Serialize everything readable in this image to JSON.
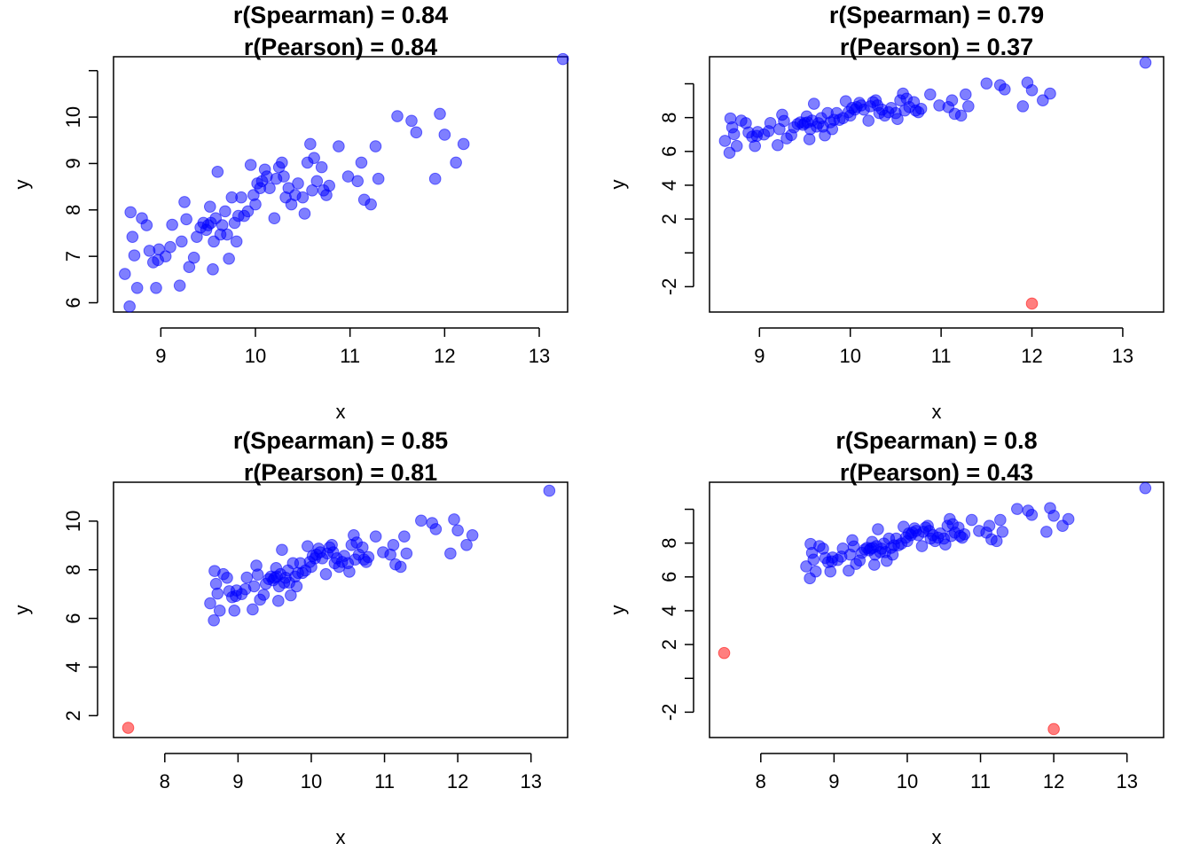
{
  "colors": {
    "point": "#0000FF",
    "outlier": "#FF0000",
    "axis": "#000000",
    "background": "#FFFFFF"
  },
  "chart_data": [
    {
      "type": "scatter",
      "title_line1": "r(Spearman) = 0.84",
      "title_line2": "r(Pearson) = 0.84",
      "xlabel": "x",
      "ylabel": "y",
      "xlim": [
        8.5,
        13.3
      ],
      "ylim": [
        5.8,
        11.3
      ],
      "xticks": [
        9,
        10,
        11,
        12,
        13
      ],
      "yticks": [
        6,
        7,
        8,
        9,
        10,
        11
      ],
      "ytick_labels": [
        "6",
        "7",
        "8",
        "9",
        "10",
        ""
      ],
      "series": [
        {
          "name": "points",
          "color": "#0000FF",
          "x": [
            8.62,
            8.67,
            8.68,
            8.7,
            8.72,
            8.75,
            8.8,
            8.85,
            8.88,
            8.92,
            8.95,
            8.97,
            8.98,
            9.05,
            9.1,
            9.12,
            9.2,
            9.22,
            9.25,
            9.27,
            9.3,
            9.35,
            9.38,
            9.42,
            9.45,
            9.48,
            9.5,
            9.52,
            9.53,
            9.55,
            9.56,
            9.58,
            9.6,
            9.63,
            9.65,
            9.68,
            9.7,
            9.72,
            9.75,
            9.78,
            9.8,
            9.82,
            9.85,
            9.88,
            9.92,
            9.95,
            9.98,
            10.0,
            10.02,
            10.05,
            10.07,
            10.1,
            10.12,
            10.15,
            10.2,
            10.22,
            10.25,
            10.28,
            10.3,
            10.32,
            10.35,
            10.38,
            10.42,
            10.45,
            10.5,
            10.52,
            10.55,
            10.58,
            10.6,
            10.62,
            10.65,
            10.7,
            10.72,
            10.75,
            10.78,
            10.88,
            10.98,
            11.08,
            11.12,
            11.15,
            11.22,
            11.27,
            11.3,
            11.5,
            11.65,
            11.7,
            11.9,
            11.95,
            12.0,
            12.12,
            12.2,
            13.25
          ],
          "y": [
            6.62,
            5.92,
            7.95,
            7.42,
            7.02,
            6.32,
            7.82,
            7.67,
            7.12,
            6.87,
            6.32,
            6.92,
            7.15,
            7.0,
            7.2,
            7.68,
            6.37,
            7.32,
            8.17,
            7.8,
            6.77,
            6.97,
            7.42,
            7.62,
            7.72,
            7.57,
            7.67,
            8.07,
            7.72,
            6.72,
            7.32,
            7.82,
            8.82,
            7.47,
            7.67,
            7.97,
            7.47,
            6.95,
            8.27,
            7.72,
            7.32,
            7.87,
            8.27,
            7.87,
            7.97,
            8.97,
            8.32,
            8.12,
            8.57,
            8.47,
            8.62,
            8.87,
            8.72,
            8.47,
            7.82,
            8.67,
            8.92,
            9.02,
            8.72,
            8.27,
            8.47,
            8.12,
            8.32,
            8.57,
            8.27,
            7.92,
            9.02,
            9.42,
            8.42,
            9.12,
            8.62,
            8.92,
            8.42,
            8.32,
            8.52,
            9.37,
            8.72,
            8.62,
            9.02,
            8.22,
            8.12,
            9.37,
            8.67,
            10.02,
            9.92,
            9.67,
            8.67,
            10.07,
            9.62,
            9.02,
            9.42,
            11.25
          ]
        }
      ]
    },
    {
      "type": "scatter",
      "title_line1": "r(Spearman) = 0.79",
      "title_line2": "r(Pearson) = 0.37",
      "xlabel": "x",
      "ylabel": "y",
      "xlim": [
        8.45,
        13.45
      ],
      "ylim": [
        -3.5,
        11.6
      ],
      "xticks": [
        9,
        10,
        11,
        12,
        13
      ],
      "yticks": [
        -2,
        0,
        2,
        4,
        6,
        8,
        10
      ],
      "ytick_labels": [
        "-2",
        "",
        "2",
        "4",
        "6",
        "8",
        ""
      ],
      "series": [
        {
          "name": "points",
          "color": "#0000FF",
          "x": [
            8.62,
            8.67,
            8.68,
            8.7,
            8.72,
            8.75,
            8.8,
            8.85,
            8.88,
            8.92,
            8.95,
            8.97,
            8.98,
            9.05,
            9.1,
            9.12,
            9.2,
            9.22,
            9.25,
            9.27,
            9.3,
            9.35,
            9.38,
            9.42,
            9.45,
            9.48,
            9.5,
            9.52,
            9.53,
            9.55,
            9.56,
            9.58,
            9.6,
            9.63,
            9.65,
            9.68,
            9.7,
            9.72,
            9.75,
            9.78,
            9.8,
            9.82,
            9.85,
            9.88,
            9.92,
            9.95,
            9.98,
            10.0,
            10.02,
            10.05,
            10.07,
            10.1,
            10.12,
            10.15,
            10.2,
            10.22,
            10.25,
            10.28,
            10.3,
            10.32,
            10.35,
            10.38,
            10.42,
            10.45,
            10.5,
            10.52,
            10.55,
            10.58,
            10.6,
            10.62,
            10.65,
            10.7,
            10.72,
            10.75,
            10.78,
            10.88,
            10.98,
            11.08,
            11.12,
            11.15,
            11.22,
            11.27,
            11.3,
            11.5,
            11.65,
            11.7,
            11.9,
            11.95,
            12.0,
            12.12,
            12.2,
            13.25
          ],
          "y": [
            6.62,
            5.92,
            7.95,
            7.42,
            7.02,
            6.32,
            7.82,
            7.67,
            7.12,
            6.87,
            6.32,
            6.92,
            7.15,
            7.0,
            7.2,
            7.68,
            6.37,
            7.32,
            8.17,
            7.8,
            6.77,
            6.97,
            7.42,
            7.62,
            7.72,
            7.57,
            7.67,
            8.07,
            7.72,
            6.72,
            7.32,
            7.82,
            8.82,
            7.47,
            7.67,
            7.97,
            7.47,
            6.95,
            8.27,
            7.72,
            7.32,
            7.87,
            8.27,
            7.87,
            7.97,
            8.97,
            8.32,
            8.12,
            8.57,
            8.47,
            8.62,
            8.87,
            8.72,
            8.47,
            7.82,
            8.67,
            8.92,
            9.02,
            8.72,
            8.27,
            8.47,
            8.12,
            8.32,
            8.57,
            8.27,
            7.92,
            9.02,
            9.42,
            8.42,
            9.12,
            8.62,
            8.92,
            8.42,
            8.32,
            8.52,
            9.37,
            8.72,
            8.62,
            9.02,
            8.22,
            8.12,
            9.37,
            8.67,
            10.02,
            9.92,
            9.67,
            8.67,
            10.07,
            9.62,
            9.02,
            9.42,
            11.25
          ]
        },
        {
          "name": "outliers",
          "color": "#FF0000",
          "x": [
            12.0
          ],
          "y": [
            -3.0
          ]
        }
      ]
    },
    {
      "type": "scatter",
      "title_line1": "r(Spearman) = 0.85",
      "title_line2": "r(Pearson) = 0.81",
      "xlabel": "x",
      "ylabel": "y",
      "xlim": [
        7.3,
        13.5
      ],
      "ylim": [
        1.1,
        11.6
      ],
      "xticks": [
        8,
        9,
        10,
        11,
        12,
        13
      ],
      "yticks": [
        2,
        4,
        6,
        8,
        10
      ],
      "ytick_labels": [
        "2",
        "4",
        "6",
        "8",
        "10"
      ],
      "series": [
        {
          "name": "points",
          "color": "#0000FF",
          "x": [
            8.62,
            8.67,
            8.68,
            8.7,
            8.72,
            8.75,
            8.8,
            8.85,
            8.88,
            8.92,
            8.95,
            8.97,
            8.98,
            9.05,
            9.1,
            9.12,
            9.2,
            9.22,
            9.25,
            9.27,
            9.3,
            9.35,
            9.38,
            9.42,
            9.45,
            9.48,
            9.5,
            9.52,
            9.53,
            9.55,
            9.56,
            9.58,
            9.6,
            9.63,
            9.65,
            9.68,
            9.7,
            9.72,
            9.75,
            9.78,
            9.8,
            9.82,
            9.85,
            9.88,
            9.92,
            9.95,
            9.98,
            10.0,
            10.02,
            10.05,
            10.07,
            10.1,
            10.12,
            10.15,
            10.2,
            10.22,
            10.25,
            10.28,
            10.3,
            10.32,
            10.35,
            10.38,
            10.42,
            10.45,
            10.5,
            10.52,
            10.55,
            10.58,
            10.6,
            10.62,
            10.65,
            10.7,
            10.72,
            10.75,
            10.78,
            10.88,
            10.98,
            11.08,
            11.12,
            11.15,
            11.22,
            11.27,
            11.3,
            11.5,
            11.65,
            11.7,
            11.9,
            11.95,
            12.0,
            12.12,
            12.2,
            13.25
          ],
          "y": [
            6.62,
            5.92,
            7.95,
            7.42,
            7.02,
            6.32,
            7.82,
            7.67,
            7.12,
            6.87,
            6.32,
            6.92,
            7.15,
            7.0,
            7.2,
            7.68,
            6.37,
            7.32,
            8.17,
            7.8,
            6.77,
            6.97,
            7.42,
            7.62,
            7.72,
            7.57,
            7.67,
            8.07,
            7.72,
            6.72,
            7.32,
            7.82,
            8.82,
            7.47,
            7.67,
            7.97,
            7.47,
            6.95,
            8.27,
            7.72,
            7.32,
            7.87,
            8.27,
            7.87,
            7.97,
            8.97,
            8.32,
            8.12,
            8.57,
            8.47,
            8.62,
            8.87,
            8.72,
            8.47,
            7.82,
            8.67,
            8.92,
            9.02,
            8.72,
            8.27,
            8.47,
            8.12,
            8.32,
            8.57,
            8.27,
            7.92,
            9.02,
            9.42,
            8.42,
            9.12,
            8.62,
            8.92,
            8.42,
            8.32,
            8.52,
            9.37,
            8.72,
            8.62,
            9.02,
            8.22,
            8.12,
            9.37,
            8.67,
            10.02,
            9.92,
            9.67,
            8.67,
            10.07,
            9.62,
            9.02,
            9.42,
            11.25
          ]
        },
        {
          "name": "outliers",
          "color": "#FF0000",
          "x": [
            7.5
          ],
          "y": [
            1.5
          ]
        }
      ]
    },
    {
      "type": "scatter",
      "title_line1": "r(Spearman) = 0.8",
      "title_line2": "r(Pearson) = 0.43",
      "xlabel": "x",
      "ylabel": "y",
      "xlim": [
        7.3,
        13.5
      ],
      "ylim": [
        -3.5,
        11.6
      ],
      "xticks": [
        8,
        9,
        10,
        11,
        12,
        13
      ],
      "yticks": [
        -2,
        0,
        2,
        4,
        6,
        8,
        10
      ],
      "ytick_labels": [
        "-2",
        "",
        "2",
        "4",
        "6",
        "8",
        ""
      ],
      "series": [
        {
          "name": "points",
          "color": "#0000FF",
          "x": [
            8.62,
            8.67,
            8.68,
            8.7,
            8.72,
            8.75,
            8.8,
            8.85,
            8.88,
            8.92,
            8.95,
            8.97,
            8.98,
            9.05,
            9.1,
            9.12,
            9.2,
            9.22,
            9.25,
            9.27,
            9.3,
            9.35,
            9.38,
            9.42,
            9.45,
            9.48,
            9.5,
            9.52,
            9.53,
            9.55,
            9.56,
            9.58,
            9.6,
            9.63,
            9.65,
            9.68,
            9.7,
            9.72,
            9.75,
            9.78,
            9.8,
            9.82,
            9.85,
            9.88,
            9.92,
            9.95,
            9.98,
            10.0,
            10.02,
            10.05,
            10.07,
            10.1,
            10.12,
            10.15,
            10.2,
            10.22,
            10.25,
            10.28,
            10.3,
            10.32,
            10.35,
            10.38,
            10.42,
            10.45,
            10.5,
            10.52,
            10.55,
            10.58,
            10.6,
            10.62,
            10.65,
            10.7,
            10.72,
            10.75,
            10.78,
            10.88,
            10.98,
            11.08,
            11.12,
            11.15,
            11.22,
            11.27,
            11.3,
            11.5,
            11.65,
            11.7,
            11.9,
            11.95,
            12.0,
            12.12,
            12.2,
            13.25
          ],
          "y": [
            6.62,
            5.92,
            7.95,
            7.42,
            7.02,
            6.32,
            7.82,
            7.67,
            7.12,
            6.87,
            6.32,
            6.92,
            7.15,
            7.0,
            7.2,
            7.68,
            6.37,
            7.32,
            8.17,
            7.8,
            6.77,
            6.97,
            7.42,
            7.62,
            7.72,
            7.57,
            7.67,
            8.07,
            7.72,
            6.72,
            7.32,
            7.82,
            8.82,
            7.47,
            7.67,
            7.97,
            7.47,
            6.95,
            8.27,
            7.72,
            7.32,
            7.87,
            8.27,
            7.87,
            7.97,
            8.97,
            8.32,
            8.12,
            8.57,
            8.47,
            8.62,
            8.87,
            8.72,
            8.47,
            7.82,
            8.67,
            8.92,
            9.02,
            8.72,
            8.27,
            8.47,
            8.12,
            8.32,
            8.57,
            8.27,
            7.92,
            9.02,
            9.42,
            8.42,
            9.12,
            8.62,
            8.92,
            8.42,
            8.32,
            8.52,
            9.37,
            8.72,
            8.62,
            9.02,
            8.22,
            8.12,
            9.37,
            8.67,
            10.02,
            9.92,
            9.67,
            8.67,
            10.07,
            9.62,
            9.02,
            9.42,
            11.25
          ]
        },
        {
          "name": "outliers",
          "color": "#FF0000",
          "x": [
            7.5,
            12.0
          ],
          "y": [
            1.5,
            -3.0
          ]
        }
      ]
    }
  ]
}
